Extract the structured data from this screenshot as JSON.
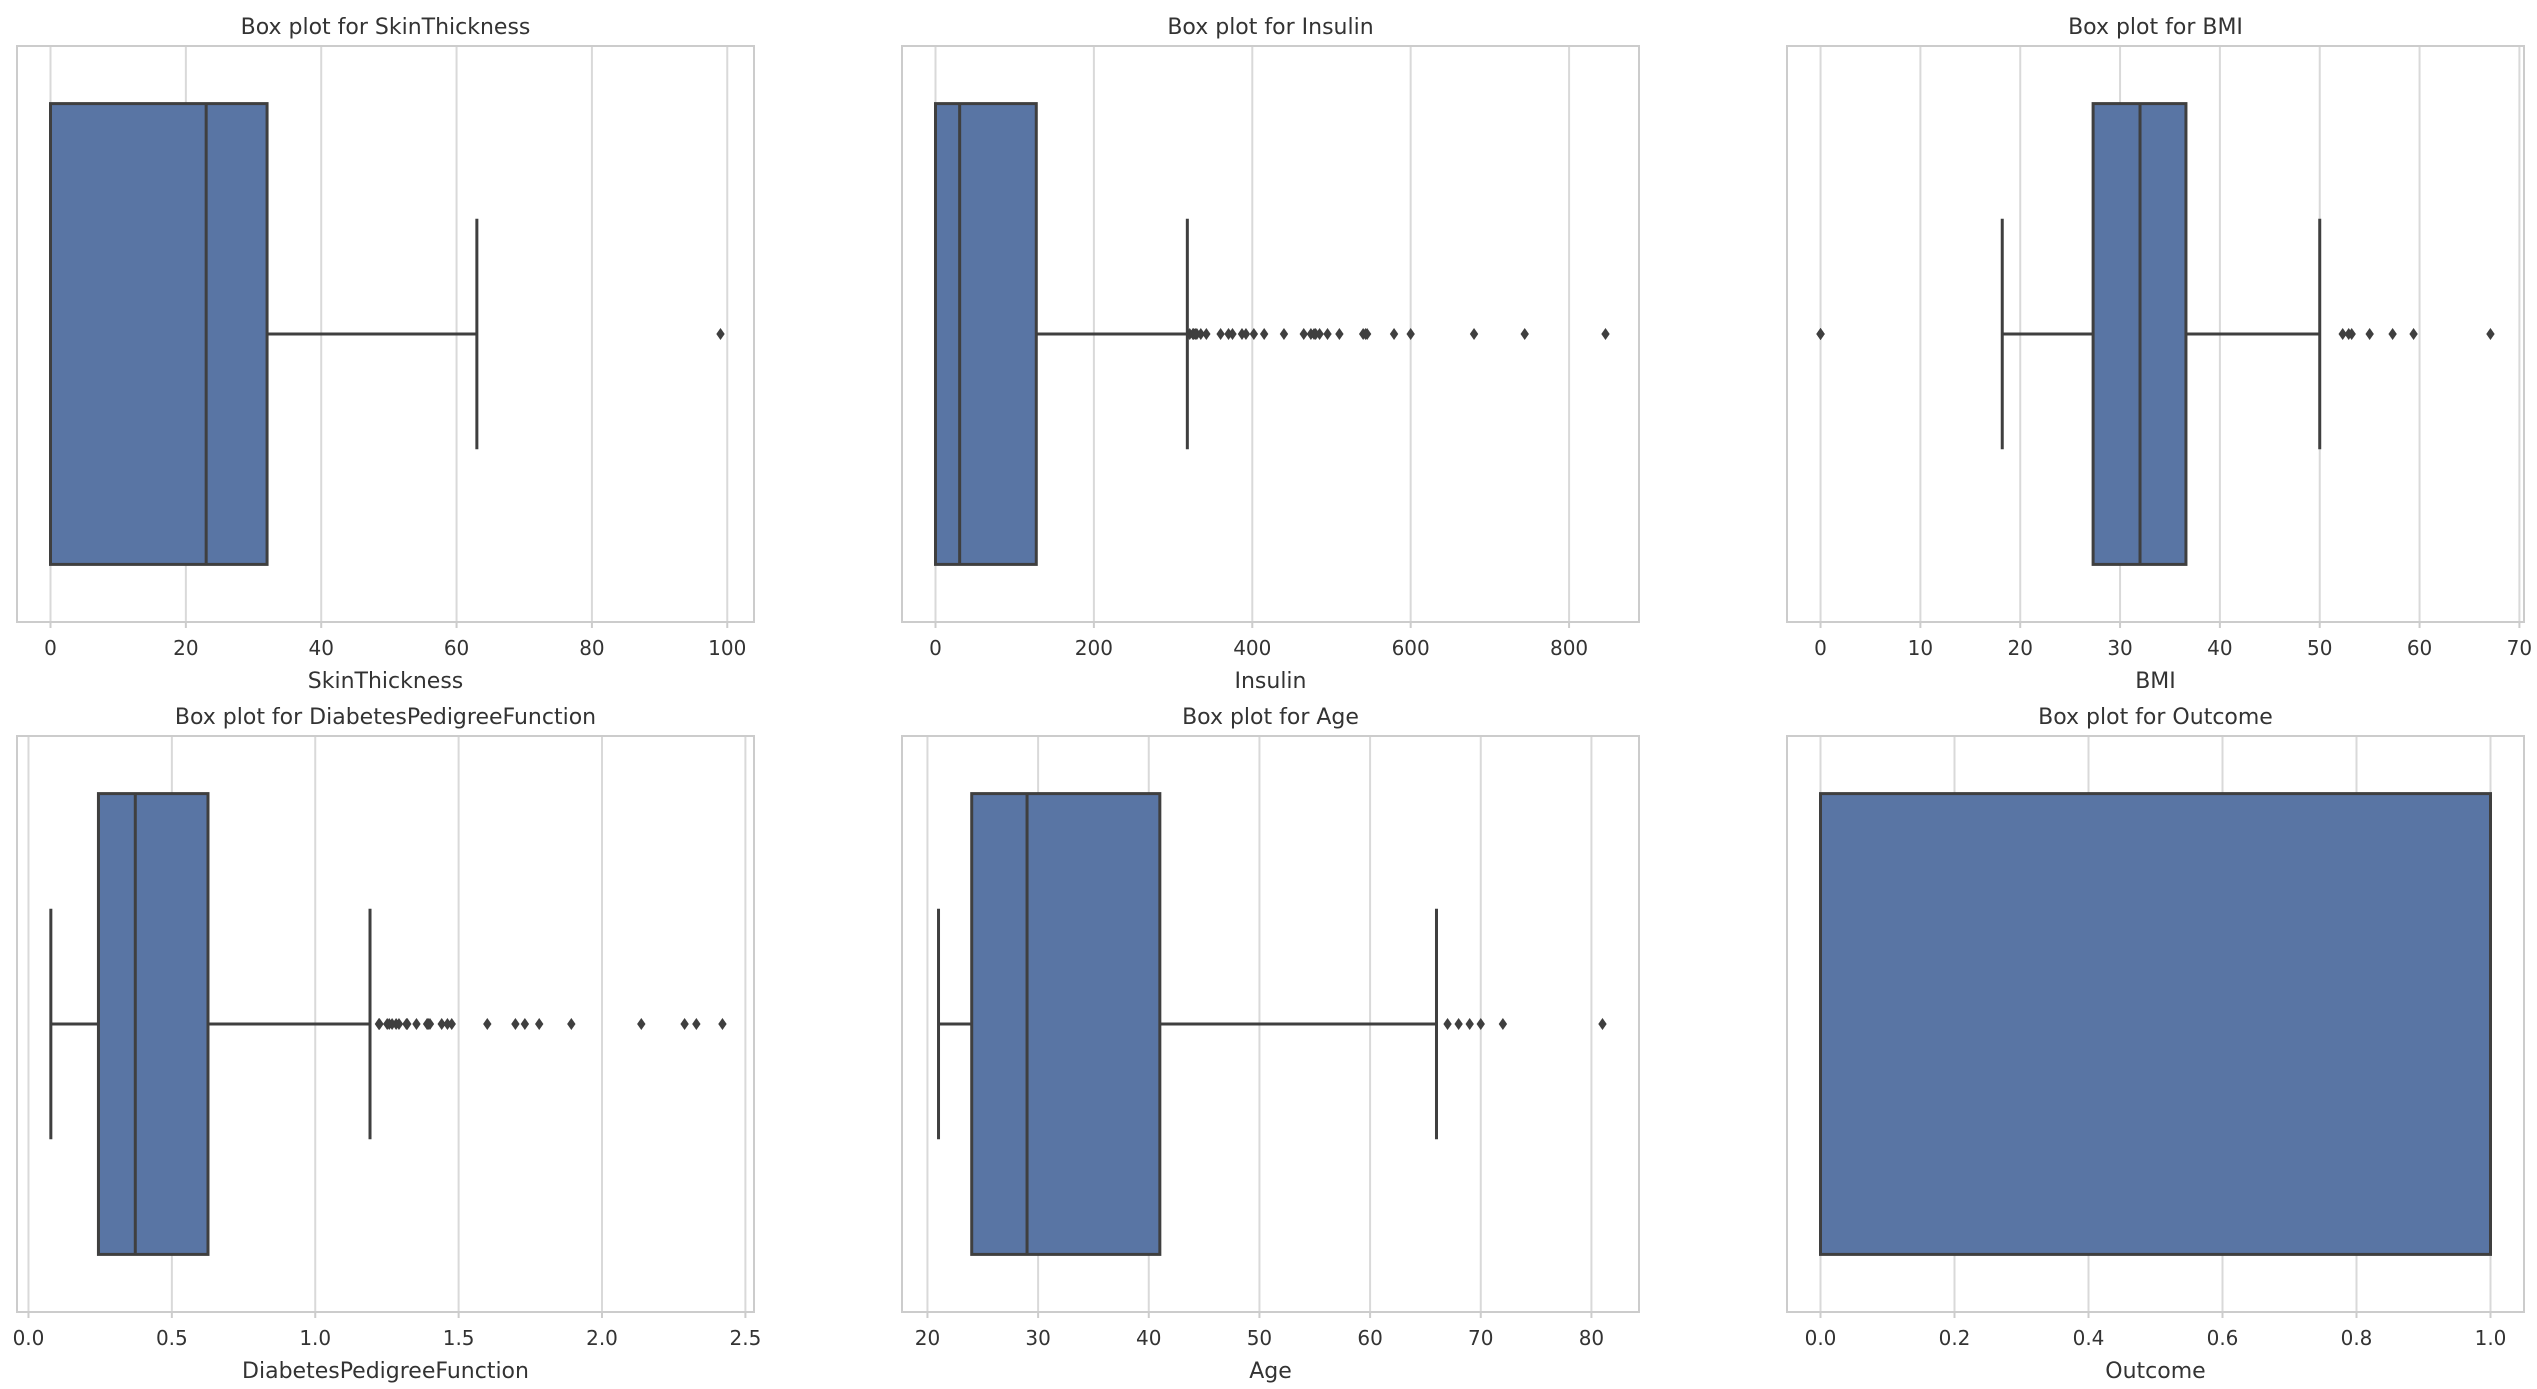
{
  "chart_data": [
    {
      "type": "box",
      "title": "Box plot for SkinThickness",
      "xlabel": "SkinThickness",
      "xlim": [
        -4.95,
        103.95
      ],
      "xticks": [
        0,
        20,
        40,
        60,
        80,
        100
      ],
      "tick_labels": [
        "0",
        "20",
        "40",
        "60",
        "80",
        "100"
      ],
      "box": {
        "whisker_low": 0,
        "q1": 0,
        "median": 23,
        "q3": 32,
        "whisker_high": 63
      },
      "outliers": [
        99
      ]
    },
    {
      "type": "box",
      "title": "Box plot for Insulin",
      "xlabel": "Insulin",
      "xlim": [
        -42.3,
        888.3
      ],
      "xticks": [
        0,
        200,
        400,
        600,
        800
      ],
      "tick_labels": [
        "0",
        "200",
        "400",
        "600",
        "800"
      ],
      "box": {
        "whisker_low": 0,
        "q1": 0,
        "median": 30.5,
        "q3": 127.25,
        "whisker_high": 318
      },
      "outliers": [
        321,
        325,
        326,
        328,
        330,
        335,
        342,
        360,
        370,
        375,
        387,
        392,
        402,
        415,
        440,
        465,
        474,
        478,
        480,
        485,
        495,
        510,
        540,
        543,
        545,
        579,
        600,
        680,
        744,
        846
      ]
    },
    {
      "type": "box",
      "title": "Box plot for BMI",
      "xlabel": "BMI",
      "xlim": [
        -3.36,
        70.46
      ],
      "xticks": [
        0,
        10,
        20,
        30,
        40,
        50,
        60,
        70
      ],
      "tick_labels": [
        "0",
        "10",
        "20",
        "30",
        "40",
        "50",
        "60",
        "70"
      ],
      "box": {
        "whisker_low": 18.2,
        "q1": 27.3,
        "median": 32.0,
        "q3": 36.6,
        "whisker_high": 50.0
      },
      "outliers": [
        0,
        0,
        0,
        52.3,
        52.9,
        53.2,
        55.0,
        57.3,
        59.4,
        67.1
      ]
    },
    {
      "type": "box",
      "title": "Box plot for DiabetesPedigreeFunction",
      "xlabel": "DiabetesPedigreeFunction",
      "xlim": [
        -0.04,
        2.53
      ],
      "xticks": [
        0.0,
        0.5,
        1.0,
        1.5,
        2.0,
        2.5
      ],
      "tick_labels": [
        "0.0",
        "0.5",
        "1.0",
        "1.5",
        "2.0",
        "2.5"
      ],
      "box": {
        "whisker_low": 0.078,
        "q1": 0.244,
        "median": 0.3725,
        "q3": 0.626,
        "whisker_high": 1.191
      },
      "outliers": [
        1.222,
        1.224,
        1.251,
        1.258,
        1.268,
        1.282,
        1.292,
        1.318,
        1.321,
        1.353,
        1.39,
        1.394,
        1.4,
        1.441,
        1.461,
        1.476,
        1.6,
        1.698,
        1.731,
        1.781,
        1.893,
        2.137,
        2.288,
        2.329,
        2.42
      ]
    },
    {
      "type": "box",
      "title": "Box plot for Age",
      "xlabel": "Age",
      "xlim": [
        17.7,
        84.3
      ],
      "xticks": [
        20,
        30,
        40,
        50,
        60,
        70,
        80
      ],
      "tick_labels": [
        "20",
        "30",
        "40",
        "50",
        "60",
        "70",
        "80"
      ],
      "box": {
        "whisker_low": 21,
        "q1": 24,
        "median": 29,
        "q3": 41,
        "whisker_high": 66
      },
      "outliers": [
        67,
        68,
        69,
        70,
        72,
        81
      ]
    },
    {
      "type": "box",
      "title": "Box plot for Outcome",
      "xlabel": "Outcome",
      "xlim": [
        -0.05,
        1.05
      ],
      "xticks": [
        0.0,
        0.2,
        0.4,
        0.6,
        0.8,
        1.0
      ],
      "tick_labels": [
        "0.0",
        "0.2",
        "0.4",
        "0.6",
        "0.8",
        "1.0"
      ],
      "box": {
        "whisker_low": 0,
        "q1": 0,
        "median": 0,
        "q3": 1,
        "whisker_high": 1
      },
      "outliers": []
    }
  ],
  "colors": {
    "box_fill": "#5975a4",
    "line": "#3f3f3f",
    "grid": "#d9d9d9",
    "frame": "#cccccc",
    "text": "#333333",
    "outlier": "#3f3f3f"
  }
}
